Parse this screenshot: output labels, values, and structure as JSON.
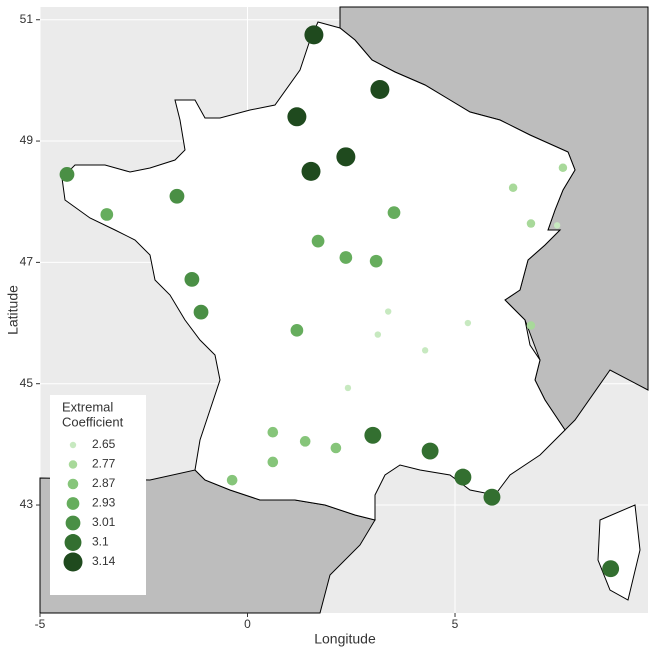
{
  "chart_data": {
    "type": "scatter",
    "xlabel": "Longitude",
    "ylabel": "Latitude",
    "xlim": [
      -5,
      9.65
    ],
    "ylim": [
      41.22,
      51.21
    ],
    "xticks": [
      -5,
      0,
      5
    ],
    "yticks": [
      43,
      45,
      47,
      49,
      51
    ],
    "grid": true,
    "legend_title": [
      "Extremal",
      "Coefficient"
    ],
    "legend_position": "bottom-left",
    "legend_levels": [
      2.65,
      2.77,
      2.87,
      2.93,
      3.01,
      3.1,
      3.14
    ],
    "legend_colors": [
      "#c7e9c0",
      "#a8d99a",
      "#86c57a",
      "#66ad5d",
      "#4a8f45",
      "#336f30",
      "#1f4a1e"
    ],
    "series": [
      {
        "x": [
          1.6,
          3.19,
          1.19,
          2.37,
          1.53,
          -4.35,
          -1.7,
          -3.39,
          3.53,
          1.7,
          2.37,
          3.1,
          6.4,
          7.6,
          6.83,
          7.46,
          -1.34,
          -1.12,
          1.19,
          3.39,
          5.31,
          3.14,
          4.28,
          6.83,
          2.42,
          0.61,
          1.39,
          2.13,
          0.61,
          -0.37,
          3.02,
          4.4,
          5.19,
          5.89,
          8.75
        ],
        "y": [
          50.75,
          49.85,
          49.4,
          48.74,
          48.5,
          48.45,
          48.09,
          47.79,
          47.82,
          47.35,
          47.08,
          47.02,
          48.23,
          48.56,
          47.64,
          47.61,
          46.72,
          46.18,
          45.88,
          46.19,
          46.0,
          45.81,
          45.55,
          45.96,
          44.93,
          44.2,
          44.05,
          43.94,
          43.71,
          43.41,
          44.15,
          43.89,
          43.46,
          43.13,
          41.95
        ],
        "size": [
          3.14,
          3.14,
          3.14,
          3.14,
          3.14,
          3.01,
          3.01,
          2.93,
          2.93,
          2.93,
          2.93,
          2.93,
          2.77,
          2.77,
          2.77,
          2.65,
          3.01,
          3.01,
          2.93,
          2.65,
          2.65,
          2.65,
          2.65,
          2.77,
          2.65,
          2.87,
          2.87,
          2.87,
          2.87,
          2.87,
          3.1,
          3.1,
          3.1,
          3.1,
          3.1
        ]
      }
    ]
  }
}
